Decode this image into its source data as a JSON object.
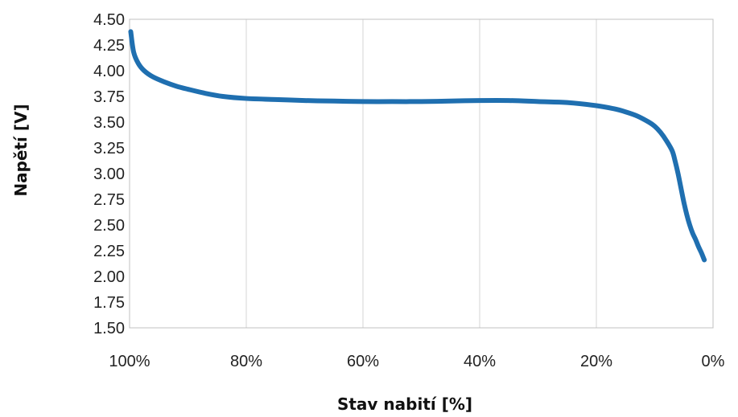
{
  "chart_data": {
    "type": "line",
    "title": "",
    "xlabel": "Stav nabití [%]",
    "ylabel": "Napětí [V]",
    "x_reversed": true,
    "xlim": [
      100,
      0
    ],
    "ylim": [
      1.5,
      4.5
    ],
    "x_ticks": [
      "100%",
      "80%",
      "60%",
      "40%",
      "20%",
      "0%"
    ],
    "x_tick_values": [
      100,
      80,
      60,
      40,
      20,
      0
    ],
    "y_ticks": [
      "4.50",
      "4.25",
      "4.00",
      "3.75",
      "3.50",
      "3.25",
      "3.00",
      "2.75",
      "2.50",
      "2.25",
      "2.00",
      "1.75",
      "1.50"
    ],
    "y_tick_values": [
      4.5,
      4.25,
      4.0,
      3.75,
      3.5,
      3.25,
      3.0,
      2.75,
      2.5,
      2.25,
      2.0,
      1.75,
      1.5
    ],
    "grid": {
      "vertical": true,
      "horizontal": false
    },
    "colors": {
      "line": "#1f6fb0",
      "grid": "#d6d6d6",
      "frame": "#c0c0c0"
    },
    "series": [
      {
        "x": [
          99.8,
          99.3,
          98.5,
          97.5,
          96,
          94,
          92,
          90,
          87,
          84,
          80,
          75,
          70,
          65,
          60,
          55,
          50,
          45,
          40,
          35,
          30,
          25,
          20,
          17,
          15,
          13,
          11,
          10,
          9,
          8,
          7,
          6.5,
          6,
          5.5,
          5,
          4.5,
          4,
          3.5,
          3,
          2.5,
          2,
          1.5
        ],
        "y": [
          4.38,
          4.18,
          4.07,
          4.0,
          3.94,
          3.89,
          3.85,
          3.82,
          3.78,
          3.75,
          3.73,
          3.72,
          3.71,
          3.705,
          3.7,
          3.7,
          3.7,
          3.705,
          3.71,
          3.71,
          3.7,
          3.69,
          3.66,
          3.63,
          3.6,
          3.56,
          3.5,
          3.46,
          3.4,
          3.32,
          3.22,
          3.12,
          3.0,
          2.86,
          2.72,
          2.6,
          2.5,
          2.42,
          2.36,
          2.29,
          2.23,
          2.16
        ]
      }
    ]
  }
}
